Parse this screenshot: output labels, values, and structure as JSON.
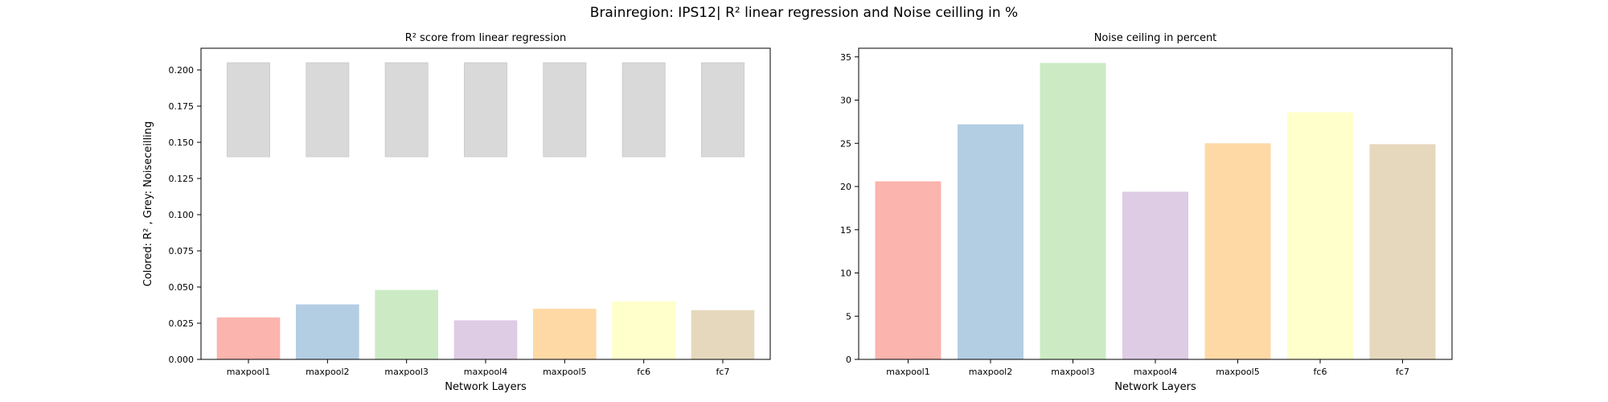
{
  "figure": {
    "title": "Brainregion: IPS12| R² linear regression and Noise ceilling in %"
  },
  "chart_data": [
    {
      "type": "bar",
      "title": "R² score from linear regression",
      "xlabel": "Network Layers",
      "ylabel": "Colored: R² , Grey: Noiseceilling",
      "categories": [
        "maxpool1",
        "maxpool2",
        "maxpool3",
        "maxpool4",
        "maxpool5",
        "fc6",
        "fc7"
      ],
      "series": [
        {
          "values": [
            0.029,
            0.038,
            0.048,
            0.027,
            0.035,
            0.04,
            0.034
          ]
        }
      ],
      "noise_ceiling_range": {
        "low": 0.14,
        "high": 0.205
      },
      "ylim": [
        0,
        0.215
      ],
      "yticks": [
        0.0,
        0.025,
        0.05,
        0.075,
        0.1,
        0.125,
        0.15,
        0.175,
        0.2
      ],
      "ytick_labels": [
        "0.000",
        "0.025",
        "0.050",
        "0.075",
        "0.100",
        "0.125",
        "0.150",
        "0.175",
        "0.200"
      ],
      "colors": [
        "#fbb4ae",
        "#b3cde3",
        "#ccebc5",
        "#decbe4",
        "#fed9a6",
        "#ffffcc",
        "#e5d8bd"
      ],
      "range_color": "#d9d9d9",
      "grid": false
    },
    {
      "type": "bar",
      "title": "Noise ceiling in percent",
      "xlabel": "Network Layers",
      "ylabel": "",
      "categories": [
        "maxpool1",
        "maxpool2",
        "maxpool3",
        "maxpool4",
        "maxpool5",
        "fc6",
        "fc7"
      ],
      "series": [
        {
          "values": [
            20.6,
            27.2,
            34.3,
            19.4,
            25.0,
            28.6,
            24.9
          ]
        }
      ],
      "ylim": [
        0,
        36
      ],
      "yticks": [
        0,
        5,
        10,
        15,
        20,
        25,
        30,
        35
      ],
      "ytick_labels": [
        "0",
        "5",
        "10",
        "15",
        "20",
        "25",
        "30",
        "35"
      ],
      "colors": [
        "#fbb4ae",
        "#b3cde3",
        "#ccebc5",
        "#decbe4",
        "#fed9a6",
        "#ffffcc",
        "#e5d8bd"
      ],
      "grid": false
    }
  ]
}
